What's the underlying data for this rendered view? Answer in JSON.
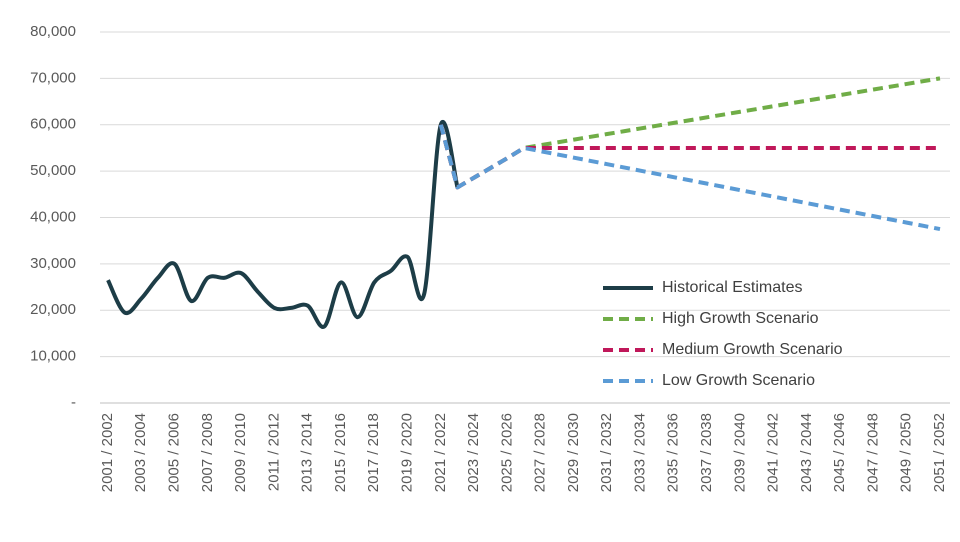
{
  "chart_data": {
    "type": "line",
    "categories": [
      "2001 / 2002",
      null,
      "2003 / 2004",
      null,
      "2005 / 2006",
      null,
      "2007 / 2008",
      null,
      "2009 / 2010",
      null,
      "2011 / 2012",
      null,
      "2013 / 2014",
      null,
      "2015 / 2016",
      null,
      "2017 / 2018",
      null,
      "2019 / 2020",
      null,
      "2021 / 2022",
      null,
      "2023 / 2024",
      null,
      "2025 / 2026",
      null,
      "2027 / 2028",
      null,
      "2029 / 2030",
      null,
      "2031 / 2032",
      null,
      "2033 / 2034",
      null,
      "2035 / 2036",
      null,
      "2037 / 2038",
      null,
      "2039 / 2040",
      null,
      "2041 / 2042",
      null,
      "2043 / 2044",
      null,
      "2045 / 2046",
      null,
      "2047 / 2048",
      null,
      "2049 / 2050",
      null,
      "2051 / 2052"
    ],
    "series": [
      {
        "name": "Historical Estimates",
        "color": "#1d3d47",
        "dashed": false,
        "smooth": true,
        "values": [
          26500,
          19500,
          22500,
          27000,
          30000,
          22000,
          27000,
          27000,
          28000,
          24000,
          20500,
          20500,
          21000,
          16500,
          26000,
          18500,
          26000,
          28500,
          31500,
          23500,
          60000,
          46500,
          null,
          null,
          null,
          null,
          null,
          null,
          null,
          null,
          null,
          null,
          null,
          null,
          null,
          null,
          null,
          null,
          null,
          null,
          null,
          null,
          null,
          null,
          null,
          null,
          null,
          null,
          null,
          null,
          null
        ]
      },
      {
        "name": "High Growth Scenario",
        "color": "#70ad47",
        "dashed": true,
        "smooth": false,
        "values": [
          null,
          null,
          null,
          null,
          null,
          null,
          null,
          null,
          null,
          null,
          null,
          null,
          null,
          null,
          null,
          null,
          null,
          null,
          null,
          null,
          60000,
          46500,
          48600,
          50700,
          52800,
          55000,
          55600,
          56200,
          56800,
          57400,
          58000,
          58600,
          59200,
          59800,
          60400,
          61000,
          61600,
          62200,
          62800,
          63400,
          64000,
          64600,
          65200,
          65800,
          66400,
          67000,
          67600,
          68200,
          68800,
          69400,
          70000
        ]
      },
      {
        "name": "Medium Growth Scenario",
        "color": "#c0185a",
        "dashed": true,
        "smooth": false,
        "values": [
          null,
          null,
          null,
          null,
          null,
          null,
          null,
          null,
          null,
          null,
          null,
          null,
          null,
          null,
          null,
          null,
          null,
          null,
          null,
          null,
          60000,
          46500,
          48600,
          50700,
          52800,
          55000,
          55000,
          55000,
          55000,
          55000,
          55000,
          55000,
          55000,
          55000,
          55000,
          55000,
          55000,
          55000,
          55000,
          55000,
          55000,
          55000,
          55000,
          55000,
          55000,
          55000,
          55000,
          55000,
          55000,
          55000,
          55000
        ]
      },
      {
        "name": "Low Growth Scenario",
        "color": "#5b9bd5",
        "dashed": true,
        "smooth": false,
        "values": [
          null,
          null,
          null,
          null,
          null,
          null,
          null,
          null,
          null,
          null,
          null,
          null,
          null,
          null,
          null,
          null,
          null,
          null,
          null,
          null,
          60000,
          46500,
          48600,
          50700,
          52800,
          55000,
          54300,
          53600,
          52900,
          52200,
          51500,
          50800,
          50100,
          49400,
          48700,
          48000,
          47300,
          46600,
          45900,
          45200,
          44500,
          43800,
          43100,
          42400,
          41700,
          41000,
          40300,
          39600,
          38900,
          38200,
          37500
        ]
      }
    ],
    "ylim": [
      0,
      80000
    ],
    "yticks": [
      {
        "value": 0,
        "label": "-"
      },
      {
        "value": 10000,
        "label": "10,000"
      },
      {
        "value": 20000,
        "label": "20,000"
      },
      {
        "value": 30000,
        "label": "30,000"
      },
      {
        "value": 40000,
        "label": "40,000"
      },
      {
        "value": 50000,
        "label": "50,000"
      },
      {
        "value": 60000,
        "label": "60,000"
      },
      {
        "value": 70000,
        "label": "70,000"
      },
      {
        "value": 80000,
        "label": "80,000"
      }
    ],
    "grid": true
  }
}
